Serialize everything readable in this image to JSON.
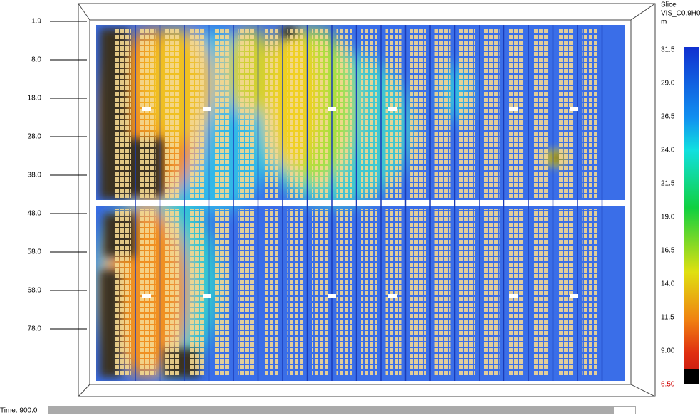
{
  "axis_labels": [
    "-1.9",
    "8.0",
    "18.0",
    "28.0",
    "38.0",
    "48.0",
    "58.0",
    "68.0",
    "78.0"
  ],
  "colorbar": {
    "title": "Slice",
    "quantity": "VIS_C0.9H0",
    "unit": "m",
    "labels": [
      "31.5",
      "29.0",
      "26.5",
      "24.0",
      "21.5",
      "19.0",
      "16.5",
      "14.0",
      "11.5",
      "9.00",
      "6.50"
    ]
  },
  "time_label": "Time: 900.0"
}
